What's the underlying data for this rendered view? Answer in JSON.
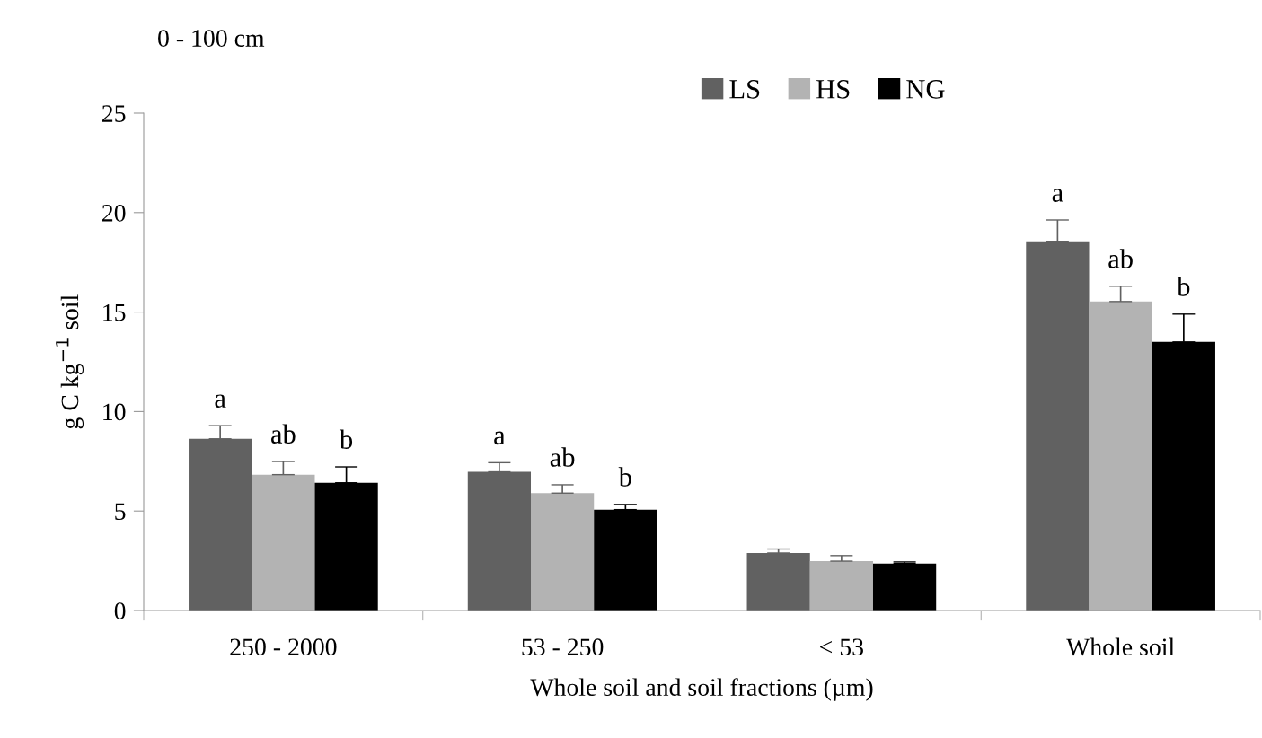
{
  "chart_data": {
    "type": "bar",
    "title": "0 - 100 cm",
    "categories": [
      "250 - 2000",
      "53 - 250",
      "< 53",
      "Whole soil"
    ],
    "xlabel": "Whole soil and soil fractions (µm)",
    "ylabel": "g C kg$^{−1}$ soil",
    "series": [
      {
        "name": "LS",
        "color": "#616161",
        "values": [
          8.63,
          6.97,
          2.89,
          18.56
        ],
        "errors": [
          0.66,
          0.46,
          0.2,
          1.07
        ],
        "value_labels": [
          "a",
          "a",
          null,
          "a"
        ]
      },
      {
        "name": "HS",
        "color": "#b3b3b3",
        "values": [
          6.83,
          5.9,
          2.48,
          15.53
        ],
        "errors": [
          0.66,
          0.42,
          0.28,
          0.77
        ],
        "value_labels": [
          "ab",
          "ab",
          null,
          "ab"
        ]
      },
      {
        "name": "NG",
        "color": "#000000",
        "values": [
          6.42,
          5.07,
          2.36,
          13.5
        ],
        "errors": [
          0.8,
          0.26,
          0.08,
          1.4
        ],
        "value_labels": [
          "b",
          "b",
          null,
          "b"
        ]
      }
    ],
    "ylim": [
      0,
      25
    ],
    "yticks": [
      0,
      5,
      10,
      15,
      20,
      25
    ],
    "grid": false,
    "legend": "top right"
  }
}
